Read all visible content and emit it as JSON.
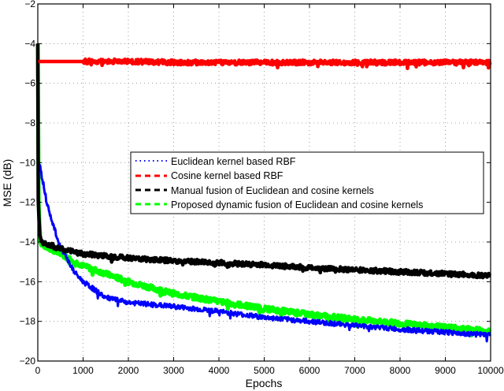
{
  "chart_data": {
    "type": "line",
    "title": "",
    "xlabel": "Epochs",
    "ylabel": "MSE (dB)",
    "xlim": [
      0,
      10000
    ],
    "ylim": [
      -20,
      -2
    ],
    "grid": true,
    "legend_position": "inside-center-right",
    "x_ticks": [
      0,
      1000,
      2000,
      3000,
      4000,
      5000,
      6000,
      7000,
      8000,
      9000,
      10000
    ],
    "y_ticks": [
      -2,
      -4,
      -6,
      -8,
      -10,
      -12,
      -14,
      -16,
      -18,
      -20
    ],
    "series": [
      {
        "name": "Euclidean kernel based RBF",
        "color": "#0000ff",
        "style": "dotted",
        "x": [
          0,
          5,
          50,
          200,
          450,
          800,
          1000,
          1500,
          2000,
          3000,
          4000,
          5000,
          6000,
          7000,
          8000,
          9000,
          10000
        ],
        "values": [
          -4,
          -10,
          -10.2,
          -12,
          -14,
          -15.5,
          -16,
          -16.8,
          -17.05,
          -17.25,
          -17.5,
          -17.8,
          -18.0,
          -18.2,
          -18.4,
          -18.55,
          -18.7
        ]
      },
      {
        "name": "Cosine kernel based RBF",
        "color": "#ff0000",
        "style": "dashed",
        "x": [
          0,
          1000,
          2000,
          3000,
          4000,
          5000,
          6000,
          7000,
          8000,
          9000,
          10000
        ],
        "values": [
          -4.9,
          -4.9,
          -4.9,
          -4.95,
          -4.95,
          -4.95,
          -4.95,
          -4.95,
          -4.95,
          -4.95,
          -4.95
        ]
      },
      {
        "name": "Manual fusion of Euclidean and cosine kernels",
        "color": "#000000",
        "style": "dashed",
        "x": [
          0,
          10,
          40,
          100,
          500,
          1000,
          2000,
          3000,
          4000,
          5000,
          6000,
          7000,
          8000,
          9000,
          10000
        ],
        "values": [
          -4,
          -12,
          -13.6,
          -14,
          -14.35,
          -14.6,
          -14.8,
          -14.95,
          -15.05,
          -15.15,
          -15.3,
          -15.4,
          -15.5,
          -15.6,
          -15.7
        ]
      },
      {
        "name": "Proposed dynamic fusion of Euclidean and cosine kernels",
        "color": "#00ff00",
        "style": "dashed",
        "x": [
          0,
          20,
          60,
          500,
          1000,
          2000,
          3000,
          4000,
          5000,
          6000,
          7000,
          8000,
          9000,
          10000
        ],
        "values": [
          -4,
          -12,
          -14.1,
          -14.6,
          -15.2,
          -16.0,
          -16.6,
          -17.0,
          -17.35,
          -17.65,
          -17.9,
          -18.1,
          -18.3,
          -18.5
        ]
      }
    ]
  },
  "axes": {
    "xlabel": "Epochs",
    "ylabel": "MSE (dB)",
    "x_tick_labels": [
      "0",
      "1000",
      "2000",
      "3000",
      "4000",
      "5000",
      "6000",
      "7000",
      "8000",
      "9000",
      "10000"
    ],
    "y_tick_labels": [
      "−2",
      "−4",
      "−6",
      "−8",
      "−10",
      "−12",
      "−14",
      "−16",
      "−18",
      "−20"
    ]
  },
  "legend": {
    "items": [
      {
        "label": "Euclidean kernel based RBF",
        "color": "#0000ff",
        "style": "dotted"
      },
      {
        "label": "Cosine kernel based RBF",
        "color": "#ff0000",
        "style": "dashed"
      },
      {
        "label": "Manual fusion of Euclidean and cosine kernels",
        "color": "#000000",
        "style": "dashed"
      },
      {
        "label": "Proposed dynamic fusion of Euclidean and cosine kernels",
        "color": "#00ff00",
        "style": "dashed"
      }
    ]
  }
}
